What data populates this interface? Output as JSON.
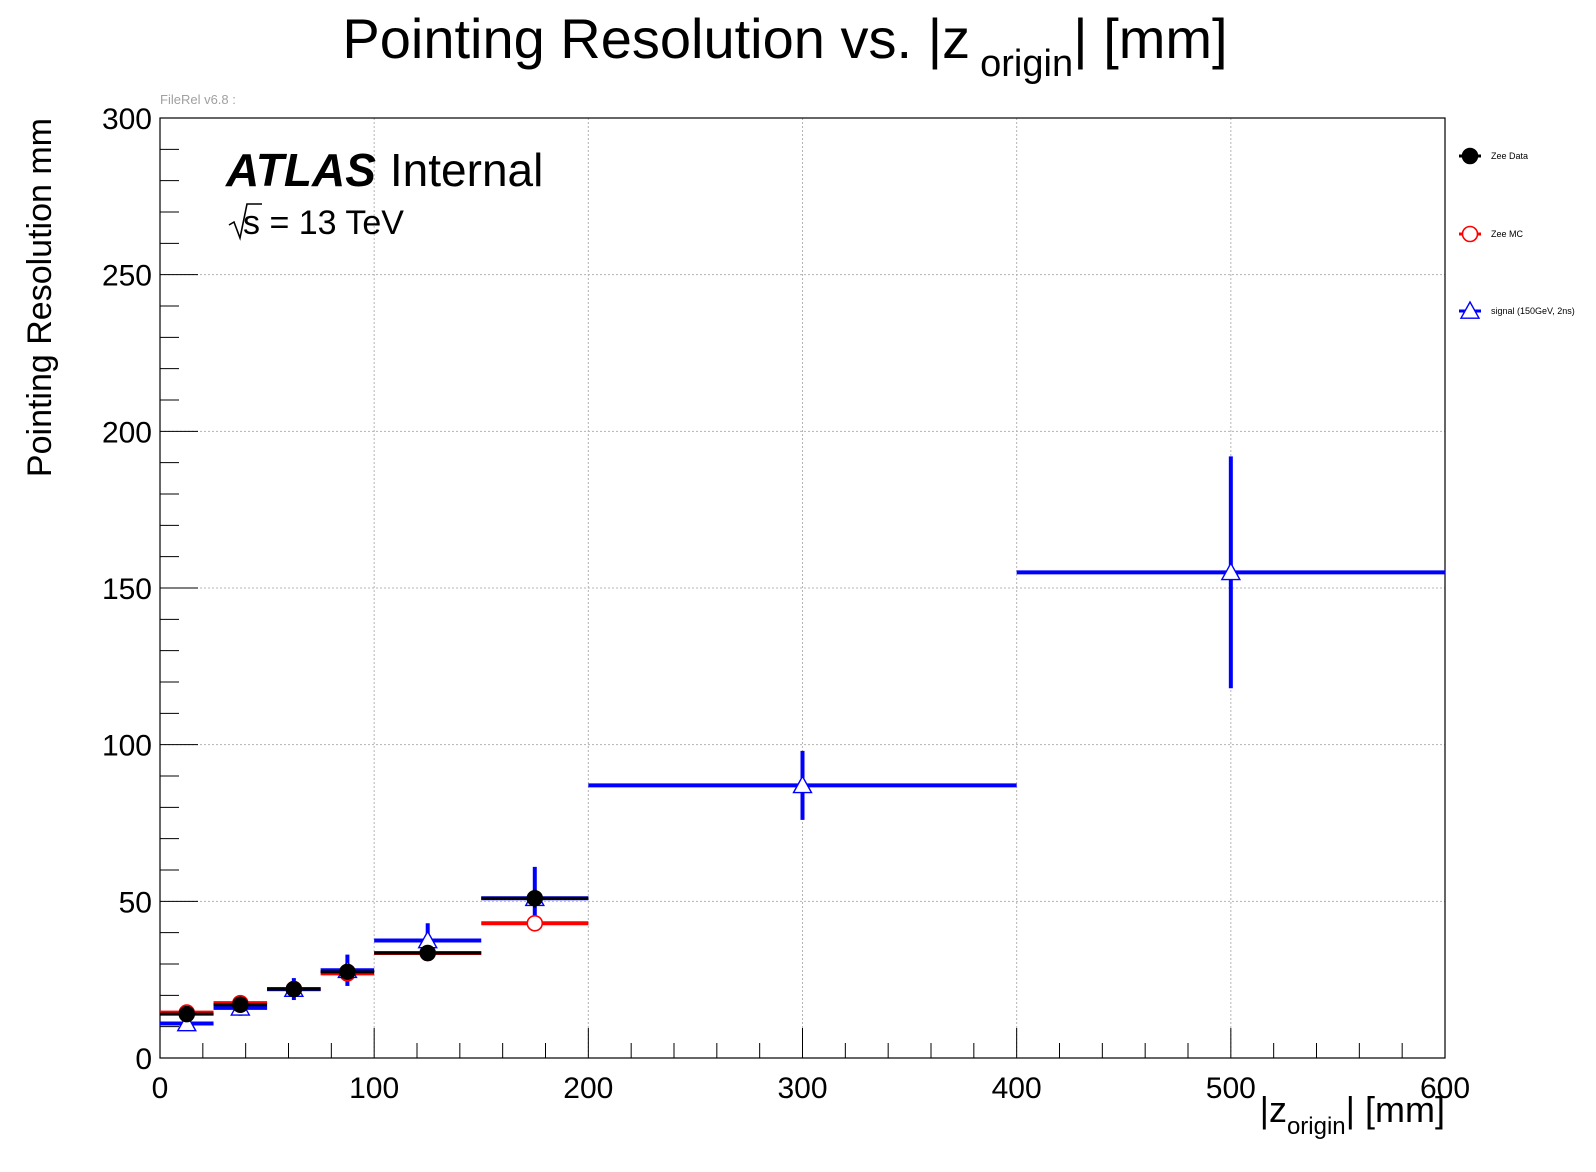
{
  "chart_data": {
    "type": "scatter",
    "title_main": "Pointing Resolution vs. |z",
    "title_sub": "origin",
    "title_end": "| [mm]",
    "xlabel_main": "|z",
    "xlabel_sub": "origin",
    "xlabel_end": "| [mm]",
    "ylabel": "Pointing Resolution mm",
    "xlim": [
      0,
      600
    ],
    "ylim": [
      0,
      300
    ],
    "x_major_ticks": [
      0,
      100,
      200,
      300,
      400,
      500,
      600
    ],
    "y_major_ticks": [
      0,
      50,
      100,
      150,
      200,
      250,
      300
    ],
    "x_tick_labels": [
      "0",
      "100",
      "200",
      "300",
      "400",
      "500",
      "600"
    ],
    "y_tick_labels": [
      "0",
      "50",
      "100",
      "150",
      "200",
      "250",
      "300"
    ],
    "grid": true,
    "label_atlas": "ATLAS",
    "label_internal": "Internal",
    "label_energy_s": "s",
    "label_energy_rest": " = 13 TeV",
    "version_text": "FileRel v6.8 :",
    "legend_position": "right",
    "series": [
      {
        "name": "Zee Data",
        "color": "#000000",
        "marker": "filled-circle",
        "points": [
          {
            "x": 12.5,
            "xerr": 12.5,
            "y": 14,
            "yerr": 1.5
          },
          {
            "x": 37.5,
            "xerr": 12.5,
            "y": 17,
            "yerr": 1.5
          },
          {
            "x": 62.5,
            "xerr": 12.5,
            "y": 22,
            "yerr": 1.5
          },
          {
            "x": 87.5,
            "xerr": 12.5,
            "y": 27.5,
            "yerr": 2
          },
          {
            "x": 125,
            "xerr": 25,
            "y": 33.5,
            "yerr": 2
          },
          {
            "x": 175,
            "xerr": 25,
            "y": 51,
            "yerr": 3
          }
        ]
      },
      {
        "name": "Zee MC",
        "color": "#ff0000",
        "marker": "open-circle",
        "points": [
          {
            "x": 12.5,
            "xerr": 12.5,
            "y": 14.5,
            "yerr": 0.8
          },
          {
            "x": 37.5,
            "xerr": 12.5,
            "y": 17.5,
            "yerr": 0.8
          },
          {
            "x": 62.5,
            "xerr": 12.5,
            "y": 22,
            "yerr": 0.8
          },
          {
            "x": 87.5,
            "xerr": 12.5,
            "y": 27,
            "yerr": 1
          },
          {
            "x": 125,
            "xerr": 25,
            "y": 33.5,
            "yerr": 1
          },
          {
            "x": 175,
            "xerr": 25,
            "y": 43,
            "yerr": 1.5
          }
        ]
      },
      {
        "name": "signal (150GeV, 2ns)",
        "color": "#0000ff",
        "marker": "open-triangle",
        "points": [
          {
            "x": 12.5,
            "xerr": 12.5,
            "y": 11,
            "yerr": 2
          },
          {
            "x": 37.5,
            "xerr": 12.5,
            "y": 16,
            "yerr": 2.5
          },
          {
            "x": 62.5,
            "xerr": 12.5,
            "y": 22,
            "yerr": 3.5
          },
          {
            "x": 87.5,
            "xerr": 12.5,
            "y": 28,
            "yerr": 5
          },
          {
            "x": 125,
            "xerr": 25,
            "y": 37.5,
            "yerr": 5.5
          },
          {
            "x": 175,
            "xerr": 25,
            "y": 51,
            "yerr": 10
          },
          {
            "x": 300,
            "xerr": 100,
            "y": 87,
            "yerr": 11
          },
          {
            "x": 500,
            "xerr": 100,
            "y": 155,
            "yerr": 37
          }
        ]
      }
    ]
  }
}
